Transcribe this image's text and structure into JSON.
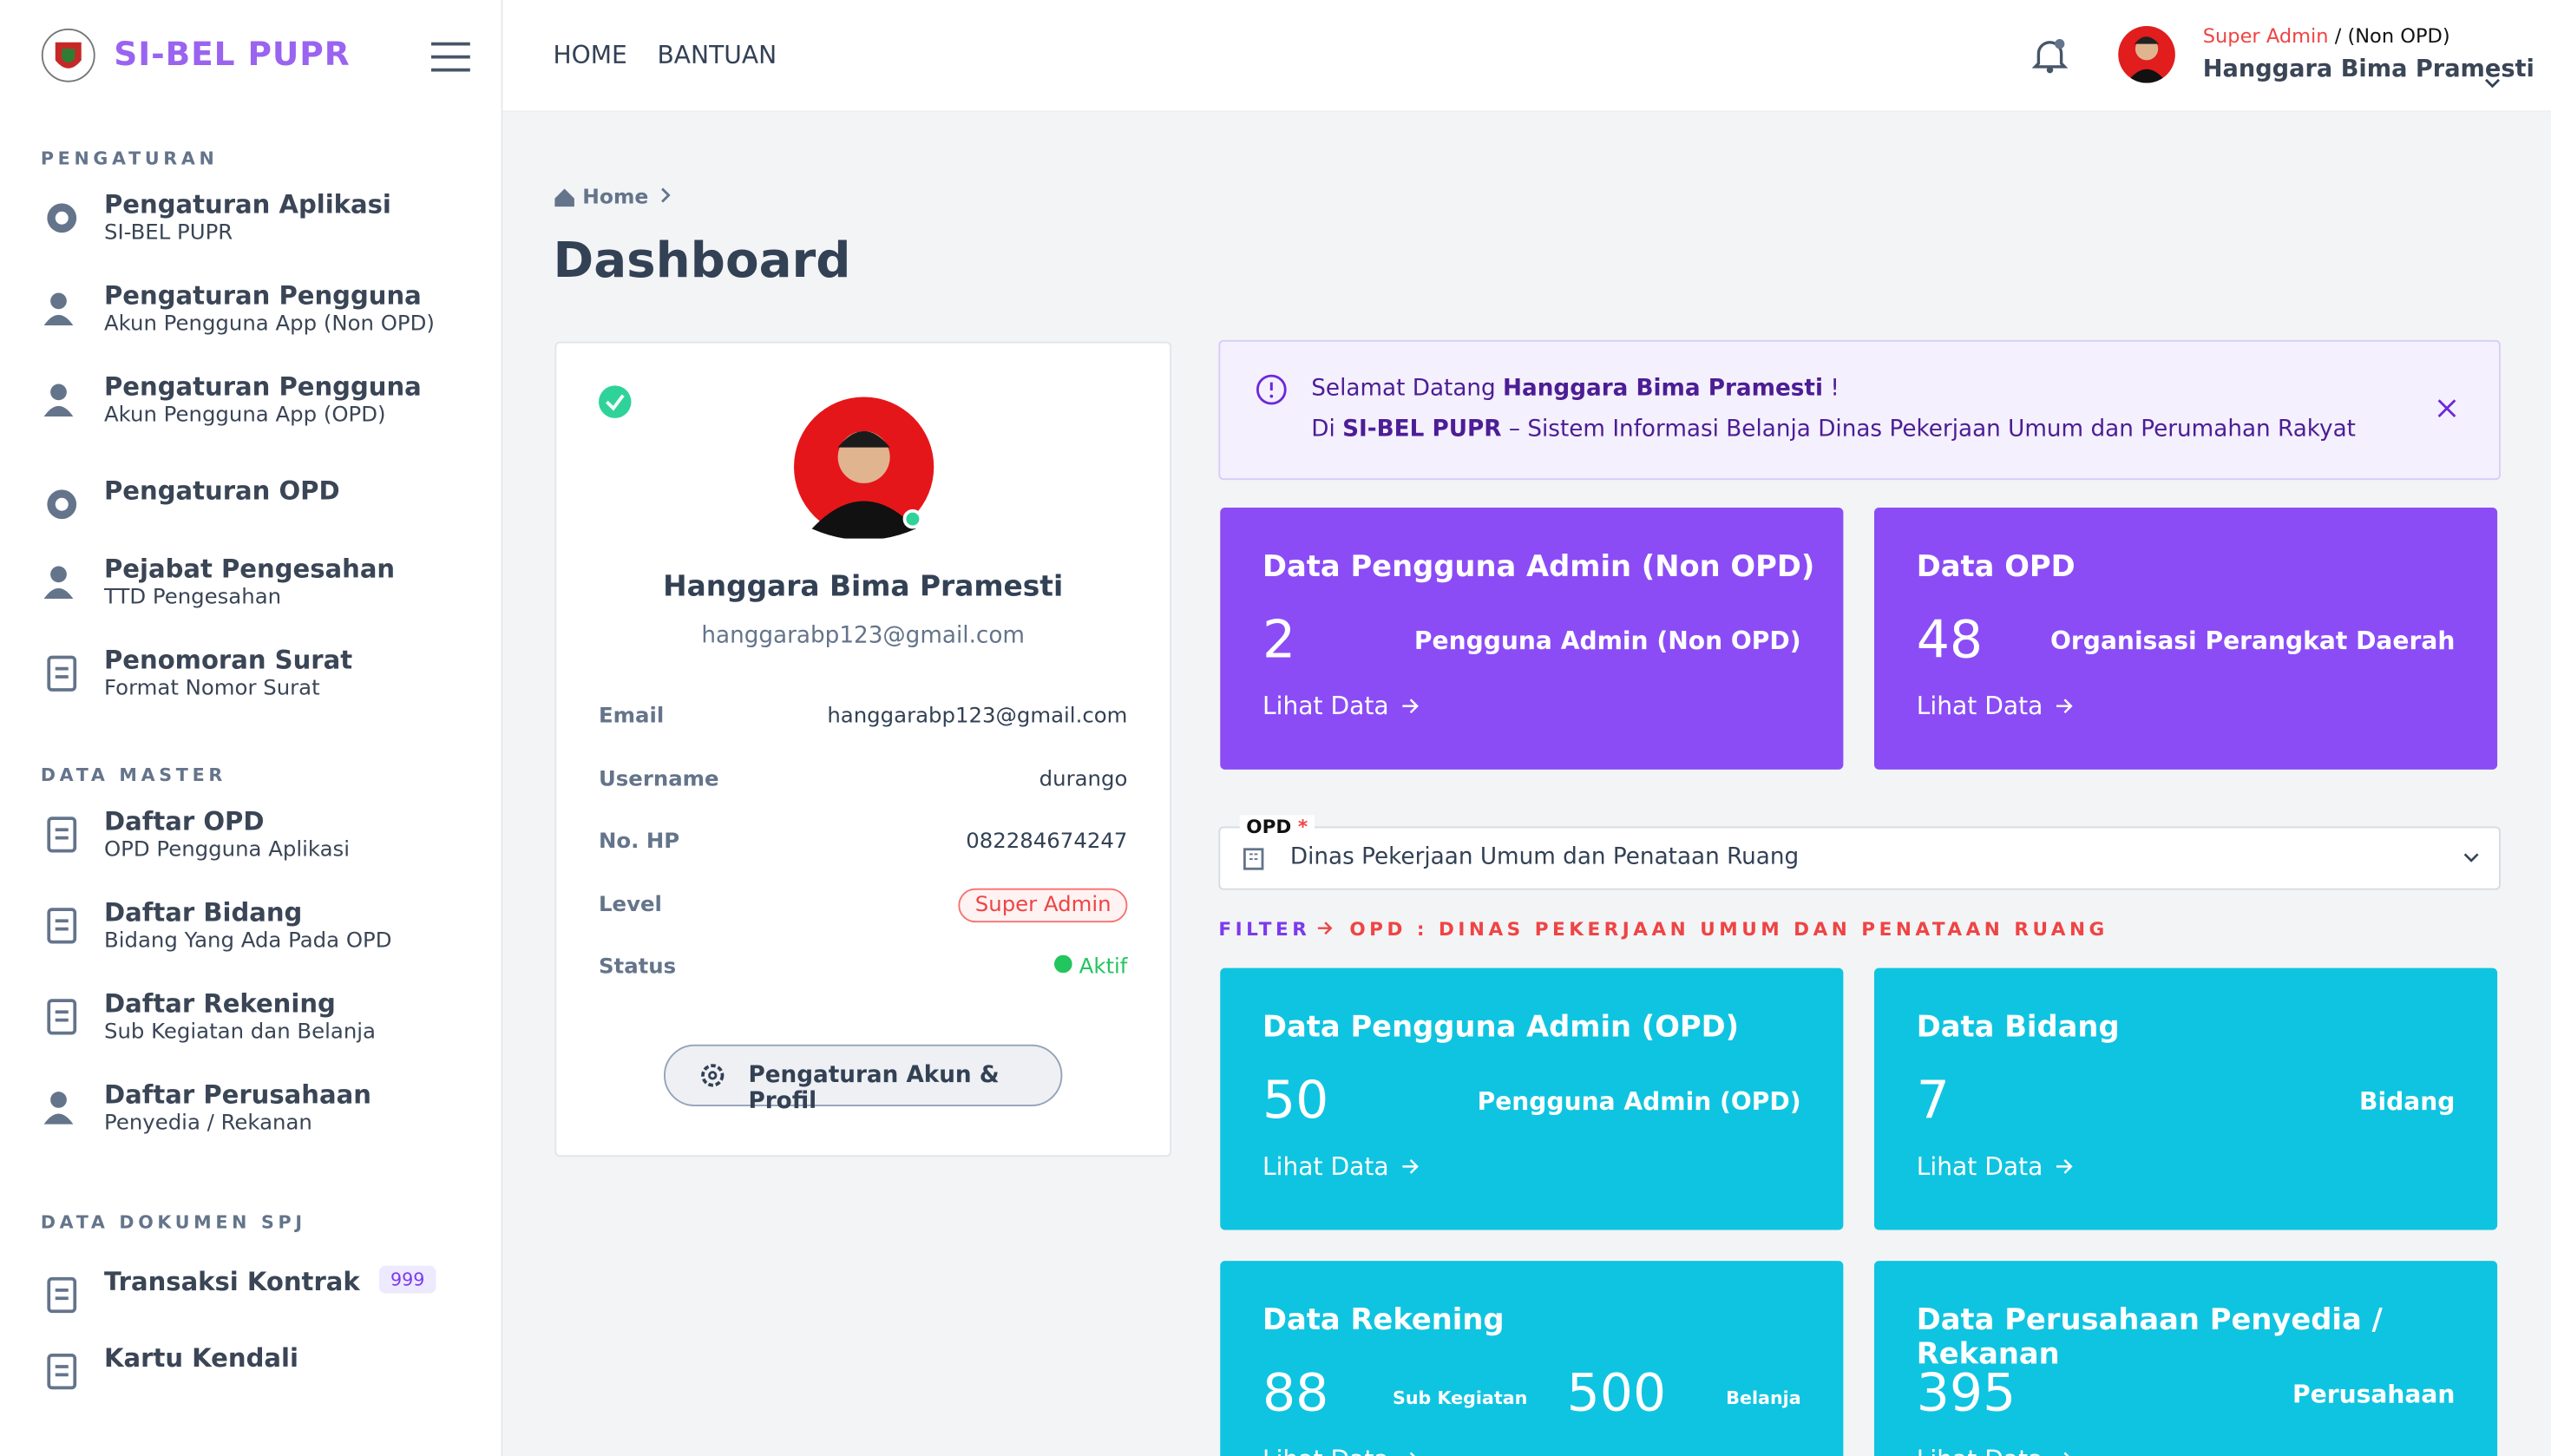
{
  "sidebar": {
    "brand": "SI-BEL PUPR",
    "sections": [
      {
        "title": "PENGATURAN",
        "items": [
          {
            "title": "Pengaturan Aplikasi",
            "sub": "SI-BEL PUPR"
          },
          {
            "title": "Pengaturan Pengguna",
            "sub": "Akun Pengguna App (Non OPD)"
          },
          {
            "title": "Pengaturan Pengguna",
            "sub": "Akun Pengguna App (OPD)"
          },
          {
            "title": "Pengaturan OPD"
          },
          {
            "title": "Pejabat Pengesahan",
            "sub": "TTD Pengesahan"
          },
          {
            "title": "Penomoran Surat",
            "sub": "Format Nomor Surat"
          }
        ]
      },
      {
        "title": "DATA MASTER",
        "items": [
          {
            "title": "Daftar OPD",
            "sub": "OPD Pengguna Aplikasi"
          },
          {
            "title": "Daftar Bidang",
            "sub": "Bidang Yang Ada Pada OPD"
          },
          {
            "title": "Daftar Rekening",
            "sub": "Sub Kegiatan dan Belanja"
          },
          {
            "title": "Daftar Perusahaan",
            "sub": "Penyedia / Rekanan"
          }
        ]
      },
      {
        "title": "DATA DOKUMEN SPJ",
        "items": [
          {
            "title": "Transaksi Kontrak",
            "badge": "999"
          },
          {
            "title": "Kartu Kendali"
          }
        ]
      }
    ]
  },
  "topnav": {
    "links": [
      "HOME",
      "BANTUAN"
    ],
    "user": {
      "role": "Super Admin",
      "scope": "/ (Non OPD)",
      "name": "Hanggara Bima Pramesti"
    }
  },
  "breadcrumb": "Home",
  "page_title": "Dashboard",
  "profile": {
    "name": "Hanggara Bima Pramesti",
    "email": "hanggarabp123@gmail.com",
    "fields": [
      {
        "label": "Email",
        "value": "hanggarabp123@gmail.com"
      },
      {
        "label": "Username",
        "value": "durango"
      },
      {
        "label": "No. HP",
        "value": "082284674247"
      },
      {
        "label": "Level",
        "value": "Super Admin"
      },
      {
        "label": "Status",
        "value": "Aktif"
      }
    ],
    "button": "Pengaturan Akun & Profil"
  },
  "alert": {
    "greeting": "Selamat Datang",
    "name": "Hanggara Bima Pramesti",
    "end": "!",
    "prefix": "Di",
    "app": "SI-BEL PUPR",
    "rest": "– Sistem Informasi Belanja Dinas Pekerjaan Umum dan Perumahan Rakyat"
  },
  "cards": [
    {
      "title": "Data Pengguna Admin (Non OPD)",
      "number": 2,
      "caption": "Pengguna Admin (Non OPD)",
      "link": "Lihat Data"
    },
    {
      "title": "Data OPD",
      "number": 48,
      "caption": "Organisasi Perangkat Daerah",
      "link": "Lihat Data"
    },
    {
      "title": "Data Pengguna Admin (OPD)",
      "number": 50,
      "caption": "Pengguna Admin (OPD)",
      "link": "Lihat Data"
    },
    {
      "title": "Data Bidang",
      "number": 7,
      "caption": "Bidang",
      "link": "Lihat Data"
    },
    {
      "title": "Data Rekening",
      "number": 88,
      "caption": "Sub Kegiatan",
      "number2": 500,
      "caption2": "Belanja",
      "link": "Lihat Data"
    },
    {
      "title": "Data Perusahaan Penyedia / Rekanan",
      "number": 395,
      "caption": "Perusahaan",
      "link": "Lihat Data"
    }
  ],
  "opd_select": {
    "label": "OPD",
    "required": "*",
    "value": "Dinas Pekerjaan Umum dan Penataan Ruang"
  },
  "filter": {
    "label": "FILTER",
    "value": "OPD : DINAS PEKERJAAN UMUM DAN PENATAAN RUANG"
  }
}
